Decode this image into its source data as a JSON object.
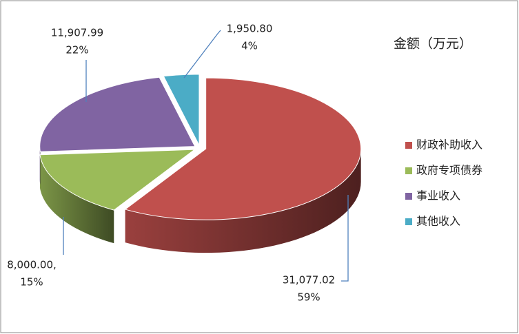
{
  "chart_data": {
    "type": "pie3d",
    "title": "金额（万元）",
    "categories": [
      "财政补助收入",
      "政府专项债券",
      "事业收入",
      "其他收入"
    ],
    "values": [
      31077.02,
      8000.0,
      11907.99,
      1950.8
    ],
    "value_labels": [
      "31,077.02",
      "8,000.00,",
      "11,907.99",
      "1,950.80"
    ],
    "percentages": [
      59,
      15,
      22,
      4
    ],
    "percentage_labels": [
      "59%",
      "15%",
      "22%",
      "4%"
    ],
    "colors": [
      "#c0504d",
      "#9bbb59",
      "#8064a2",
      "#4bacc6"
    ],
    "legend": "right"
  }
}
